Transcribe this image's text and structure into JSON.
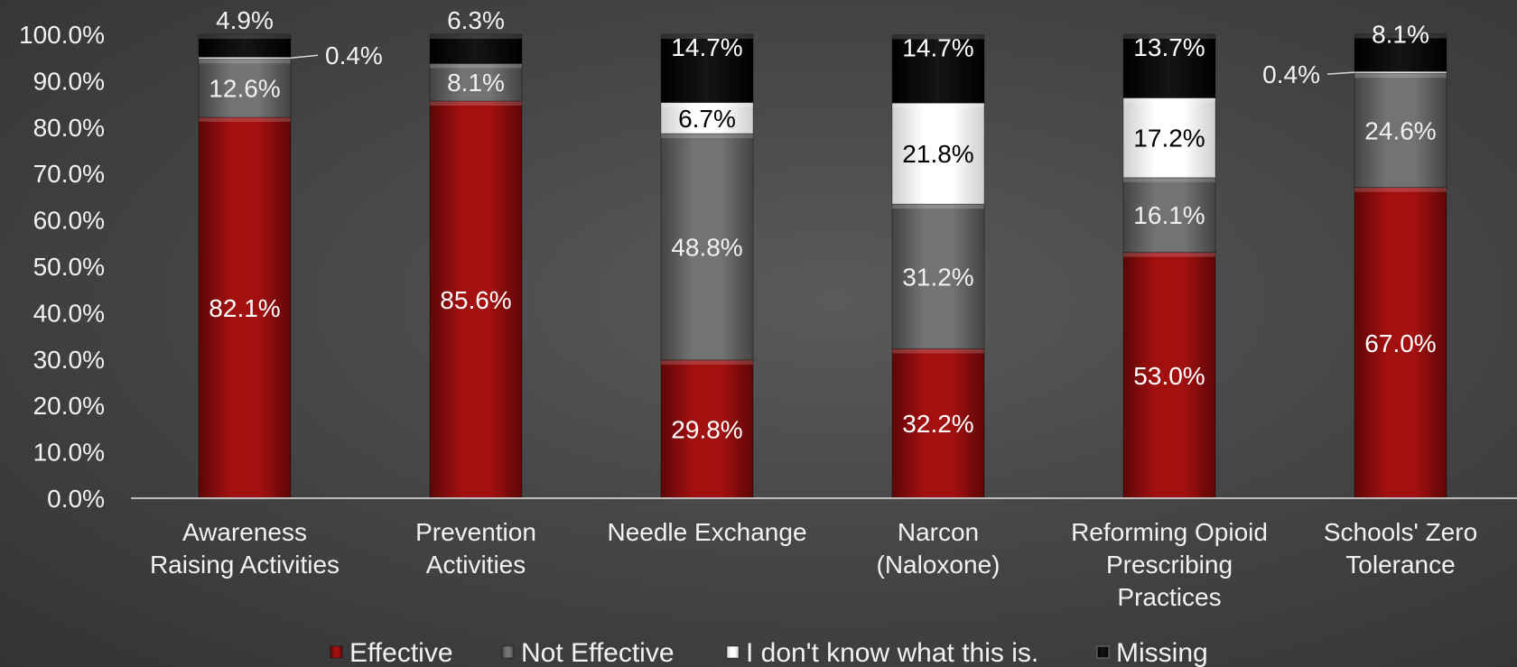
{
  "chart_data": {
    "type": "bar",
    "stacked": true,
    "categories": [
      [
        "Awareness",
        "Raising Activities"
      ],
      [
        "Prevention",
        "Activities"
      ],
      [
        "Needle Exchange"
      ],
      [
        "Narcon",
        "(Naloxone)"
      ],
      [
        "Reforming Opioid",
        "Prescribing",
        "Practices"
      ],
      [
        "Schools' Zero",
        "Tolerance"
      ]
    ],
    "series": [
      {
        "name": "Effective",
        "color": "#9b0d0d",
        "values": [
          82.1,
          85.6,
          29.8,
          32.2,
          53.0,
          67.0
        ]
      },
      {
        "name": "Not Effective",
        "color": "#6b6b6b",
        "values": [
          12.6,
          8.1,
          48.8,
          31.2,
          16.1,
          24.6
        ]
      },
      {
        "name": "I don't know what this is.",
        "color": "#f4f4f4",
        "values": [
          0.4,
          0,
          6.7,
          21.8,
          17.2,
          0.4
        ]
      },
      {
        "name": "Missing",
        "color": "#0b0b0b",
        "values": [
          4.9,
          6.3,
          14.7,
          14.7,
          13.7,
          8.1
        ]
      }
    ],
    "ylim": [
      0,
      100
    ],
    "yticks": [
      "0.0%",
      "10.0%",
      "20.0%",
      "30.0%",
      "40.0%",
      "50.0%",
      "60.0%",
      "70.0%",
      "80.0%",
      "90.0%",
      "100.0%"
    ],
    "value_suffix": "%",
    "legend_position": "bottom",
    "grid": false
  }
}
